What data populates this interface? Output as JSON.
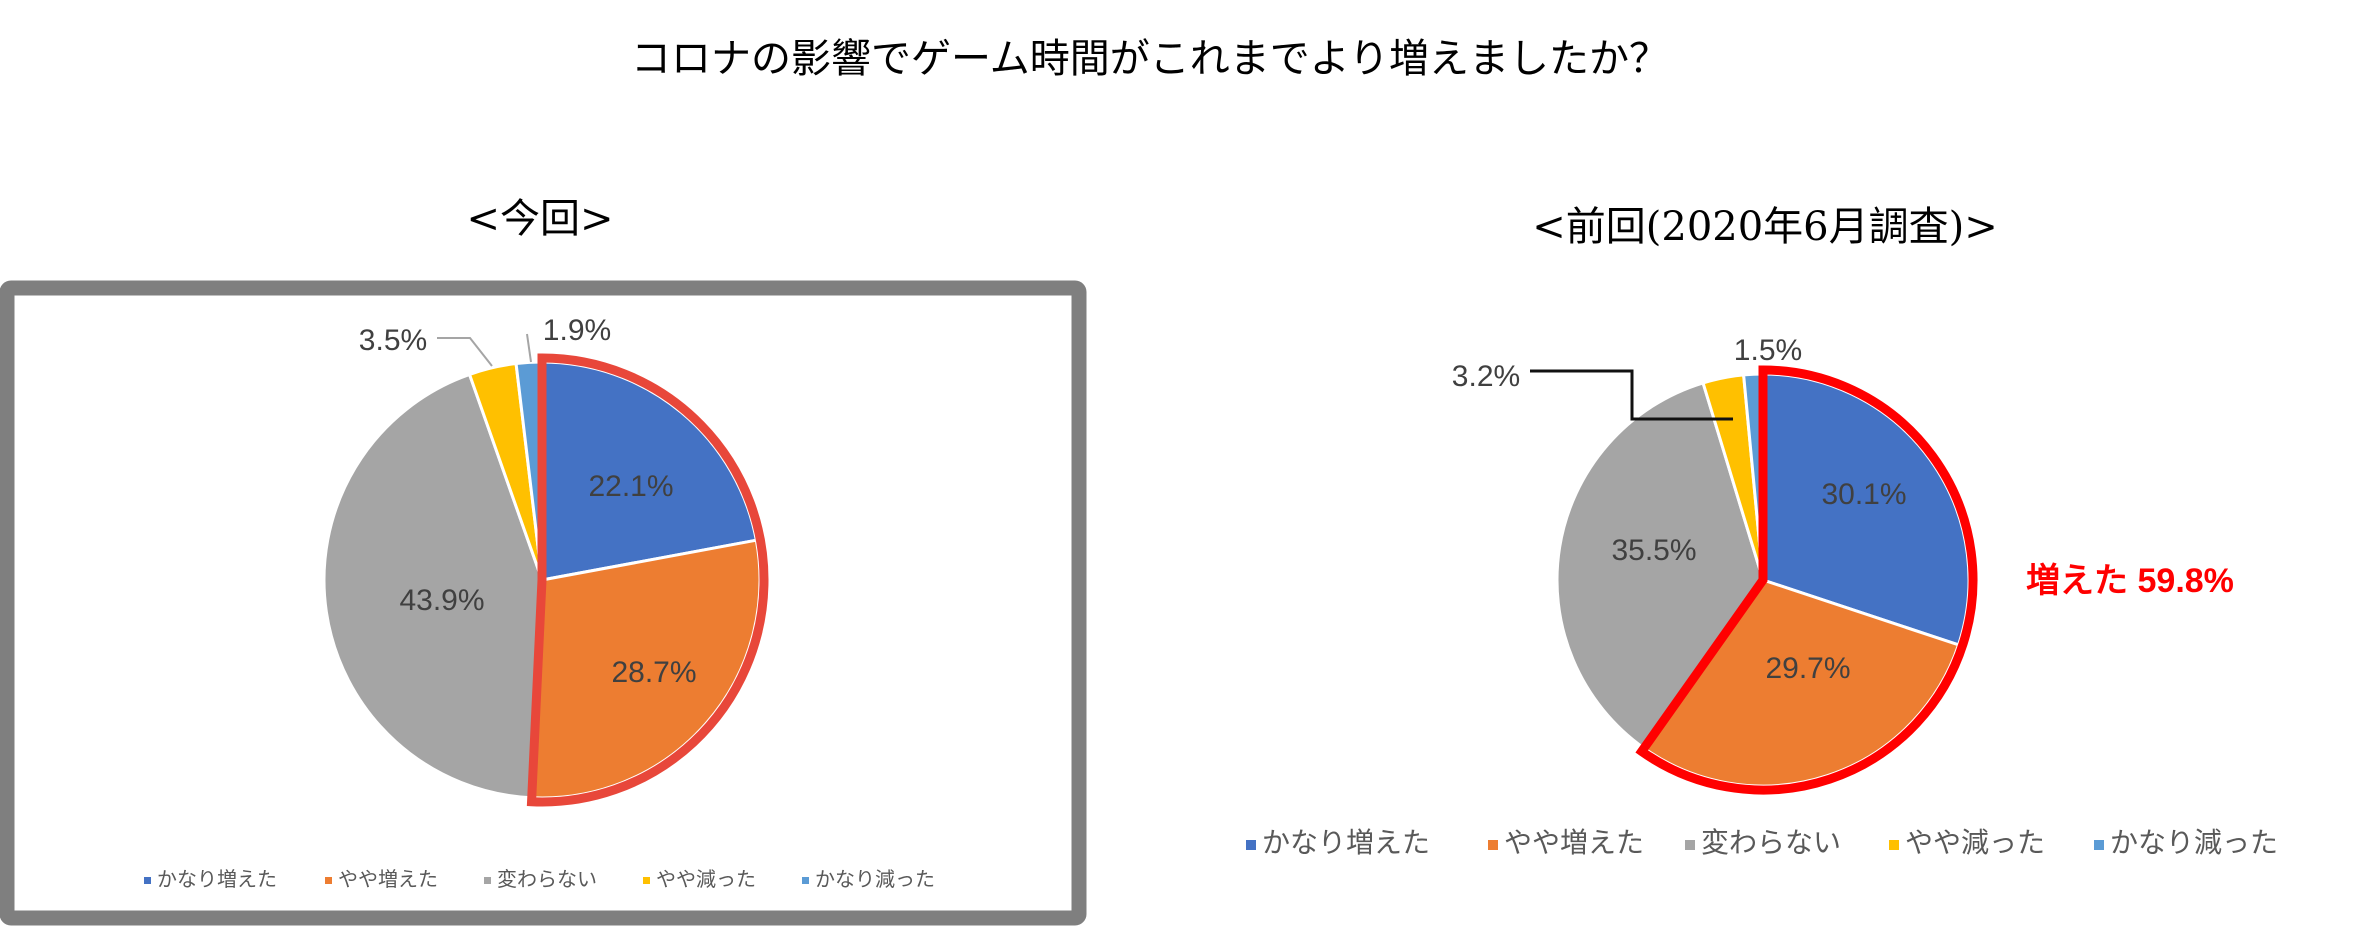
{
  "title": "コロナの影響でゲーム時間がこれまでより増えましたか？",
  "colors": {
    "かなり増えた": "#4472c4",
    "やや増えた": "#ed7d31",
    "変わらない": "#a5a5a5",
    "やや減った": "#ffc000",
    "かなり減った": "#5b9bd5",
    "highlight_left": "#e8473a",
    "highlight_right": "#ff0000",
    "frame": "#7f7f7f"
  },
  "chart_data": [
    {
      "type": "pie",
      "title": "<今回>",
      "categories": [
        "かなり増えた",
        "やや増えた",
        "変わらない",
        "やや減った",
        "かなり減った"
      ],
      "values": [
        22.1,
        28.7,
        43.9,
        3.5,
        1.9
      ],
      "labels": [
        "22.1%",
        "28.7%",
        "43.9%",
        "3.5%",
        "1.9%"
      ],
      "highlighted": [
        "かなり増えた",
        "やや増えた"
      ],
      "legend": "bottom"
    },
    {
      "type": "pie",
      "title": "<前回(2020年6月調査)>",
      "categories": [
        "かなり増えた",
        "やや増えた",
        "変わらない",
        "やや減った",
        "かなり減った"
      ],
      "values": [
        30.1,
        29.7,
        35.5,
        3.2,
        1.5
      ],
      "labels": [
        "30.1%",
        "29.7%",
        "35.5%",
        "3.2%",
        "1.5%"
      ],
      "highlighted": [
        "かなり増えた",
        "やや増えた"
      ],
      "annotation": "増えた 59.8%",
      "legend": "bottom"
    }
  ]
}
